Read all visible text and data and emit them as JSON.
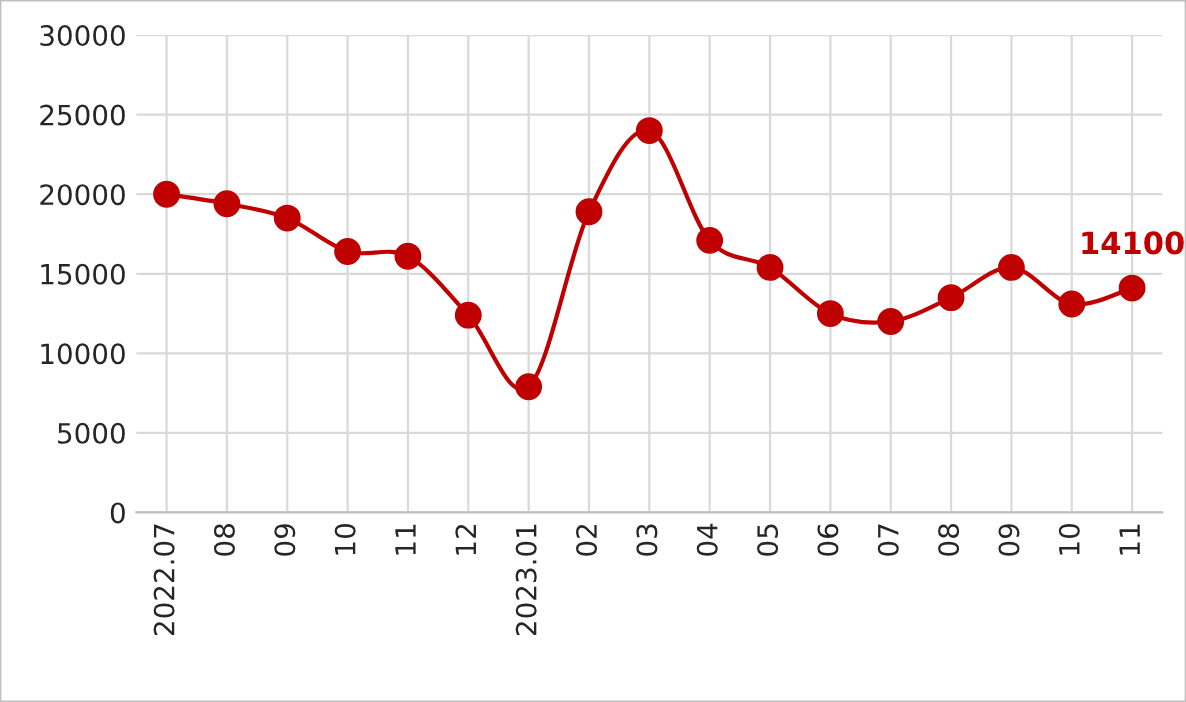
{
  "chart_data": {
    "type": "line",
    "categories": [
      "2022.07",
      "08",
      "09",
      "10",
      "11",
      "12",
      "2023.01",
      "02",
      "03",
      "04",
      "05",
      "06",
      "07",
      "08",
      "09",
      "10",
      "11"
    ],
    "series": [
      {
        "color": "#c00000",
        "values": [
          20000,
          19400,
          18500,
          16400,
          16100,
          12400,
          7900,
          18900,
          24000,
          17100,
          15400,
          12500,
          12000,
          13500,
          15400,
          13100,
          14100
        ],
        "value_labels": [
          null,
          null,
          null,
          null,
          null,
          null,
          null,
          null,
          null,
          null,
          null,
          null,
          null,
          null,
          null,
          null,
          "14100"
        ]
      }
    ],
    "ylim": [
      0,
      30000
    ],
    "yticks": [
      0,
      5000,
      10000,
      15000,
      20000,
      25000,
      30000
    ],
    "grid": true,
    "marker": "circle",
    "line_style": "solid"
  }
}
